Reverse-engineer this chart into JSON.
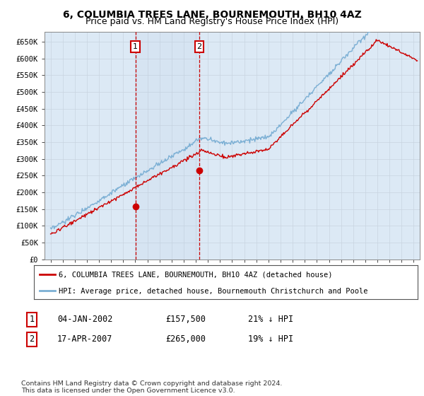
{
  "title": "6, COLUMBIA TREES LANE, BOURNEMOUTH, BH10 4AZ",
  "subtitle": "Price paid vs. HM Land Registry's House Price Index (HPI)",
  "ylim": [
    0,
    680000
  ],
  "xlim_start": 1994.5,
  "xlim_end": 2025.5,
  "grid_color": "#c8d4e0",
  "plot_bg": "#dce9f5",
  "red_line_color": "#cc0000",
  "blue_line_color": "#7bafd4",
  "transaction1_x": 2002.01,
  "transaction1_y": 157500,
  "transaction2_x": 2007.29,
  "transaction2_y": 265000,
  "legend_red_label": "6, COLUMBIA TREES LANE, BOURNEMOUTH, BH10 4AZ (detached house)",
  "legend_blue_label": "HPI: Average price, detached house, Bournemouth Christchurch and Poole",
  "table_row1": [
    "1",
    "04-JAN-2002",
    "£157,500",
    "21% ↓ HPI"
  ],
  "table_row2": [
    "2",
    "17-APR-2007",
    "£265,000",
    "19% ↓ HPI"
  ],
  "footer": "Contains HM Land Registry data © Crown copyright and database right 2024.\nThis data is licensed under the Open Government Licence v3.0.",
  "title_fontsize": 10,
  "subtitle_fontsize": 9,
  "yticks": [
    0,
    50000,
    100000,
    150000,
    200000,
    250000,
    300000,
    350000,
    400000,
    450000,
    500000,
    550000,
    600000,
    650000
  ],
  "ylabels": [
    "£0",
    "£50K",
    "£100K",
    "£150K",
    "£200K",
    "£250K",
    "£300K",
    "£350K",
    "£400K",
    "£450K",
    "£500K",
    "£550K",
    "£600K",
    "£650K"
  ]
}
